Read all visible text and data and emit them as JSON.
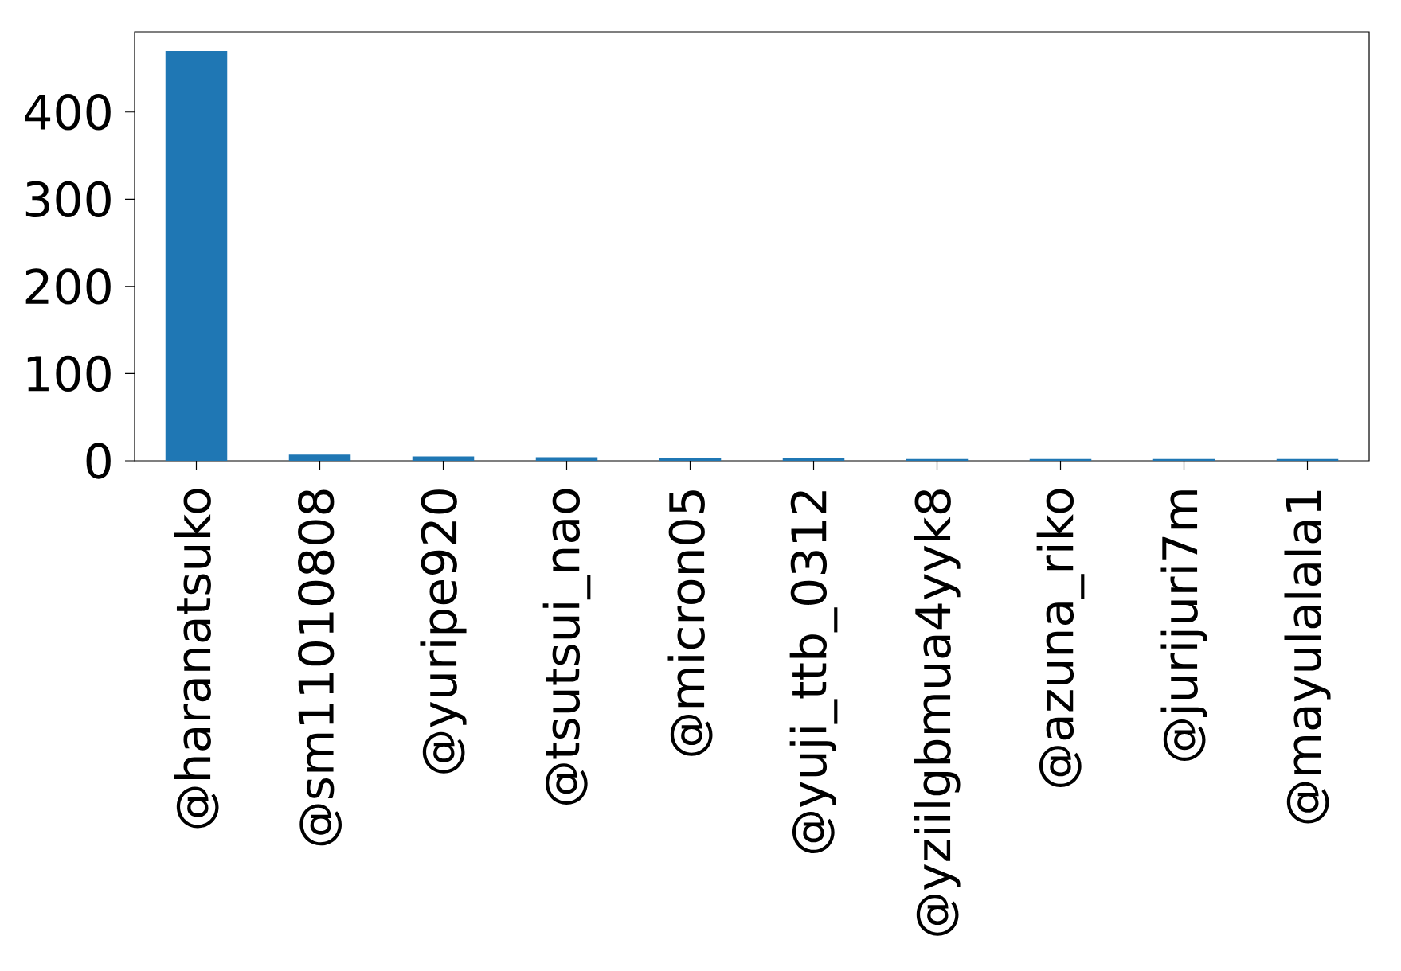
{
  "chart_data": {
    "type": "bar",
    "categories": [
      "@haranatsuko",
      "@sm11010808",
      "@yuripe920",
      "@tsutsui_nao",
      "@micron05",
      "@yuji_ttb_0312",
      "@yziilgbmua4yyk8",
      "@azuna_riko",
      "@jurijuri7m",
      "@mayulalala1"
    ],
    "values": [
      470,
      7,
      5,
      4,
      3,
      3,
      2,
      2,
      2,
      2
    ],
    "color": "#1f77b4",
    "ylim": [
      0,
      492
    ],
    "yticks": [
      0,
      100,
      200,
      300,
      400
    ],
    "grid": false
  }
}
